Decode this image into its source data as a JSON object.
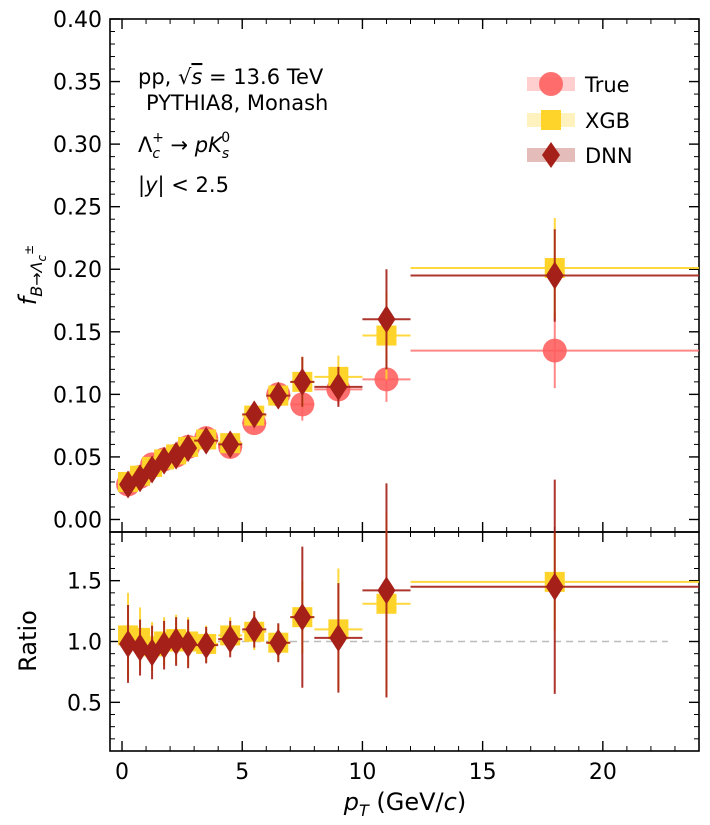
{
  "chart_data": {
    "type": "scatter",
    "xlabel": "p_T (GeV/c)",
    "xlim": [
      -0.5,
      24
    ],
    "xticks": [
      0,
      5,
      10,
      15,
      20
    ],
    "grid": false,
    "legend_position": "top-right",
    "annotations": [
      "pp, √s = 13.6 TeV",
      "PYTHIA8, Monash",
      "Λc+ → pKs0",
      "|y| < 2.5"
    ],
    "panels": [
      {
        "name": "main",
        "ylabel": "f_{B→Λc±}",
        "ylim": [
          -0.01,
          0.4
        ],
        "yticks": [
          0.0,
          0.05,
          0.1,
          0.15,
          0.2,
          0.25,
          0.3,
          0.35,
          0.4
        ],
        "ytick_labels": [
          "0.00",
          "0.05",
          "0.10",
          "0.15",
          "0.20",
          "0.25",
          "0.30",
          "0.35",
          "0.40"
        ],
        "series": [
          {
            "name": "True",
            "marker": "circle",
            "color": "#ff6060",
            "points": [
              {
                "x": 0.25,
                "xerr": 0.25,
                "y": 0.028,
                "yerr": 0.003
              },
              {
                "x": 0.75,
                "xerr": 0.25,
                "y": 0.034,
                "yerr": 0.003
              },
              {
                "x": 1.25,
                "xerr": 0.25,
                "y": 0.044,
                "yerr": 0.003
              },
              {
                "x": 1.75,
                "xerr": 0.25,
                "y": 0.048,
                "yerr": 0.003
              },
              {
                "x": 2.25,
                "xerr": 0.25,
                "y": 0.051,
                "yerr": 0.003
              },
              {
                "x": 2.75,
                "xerr": 0.25,
                "y": 0.058,
                "yerr": 0.003
              },
              {
                "x": 3.5,
                "xerr": 0.5,
                "y": 0.065,
                "yerr": 0.004
              },
              {
                "x": 4.5,
                "xerr": 0.5,
                "y": 0.058,
                "yerr": 0.005
              },
              {
                "x": 5.5,
                "xerr": 0.5,
                "y": 0.077,
                "yerr": 0.006
              },
              {
                "x": 6.5,
                "xerr": 0.5,
                "y": 0.1,
                "yerr": 0.008
              },
              {
                "x": 7.5,
                "xerr": 0.5,
                "y": 0.092,
                "yerr": 0.013
              },
              {
                "x": 9.0,
                "xerr": 1.0,
                "y": 0.104,
                "yerr": 0.012
              },
              {
                "x": 11.0,
                "xerr": 1.0,
                "y": 0.112,
                "yerr": 0.018
              },
              {
                "x": 18.0,
                "xerr": 6.0,
                "y": 0.135,
                "yerr": 0.03
              }
            ]
          },
          {
            "name": "XGB",
            "marker": "square",
            "color": "#ffd42a",
            "points": [
              {
                "x": 0.25,
                "xerr": 0.25,
                "y": 0.03,
                "yerr": 0.004
              },
              {
                "x": 0.75,
                "xerr": 0.25,
                "y": 0.035,
                "yerr": 0.004
              },
              {
                "x": 1.25,
                "xerr": 0.25,
                "y": 0.042,
                "yerr": 0.004
              },
              {
                "x": 1.75,
                "xerr": 0.25,
                "y": 0.048,
                "yerr": 0.004
              },
              {
                "x": 2.25,
                "xerr": 0.25,
                "y": 0.052,
                "yerr": 0.004
              },
              {
                "x": 2.75,
                "xerr": 0.25,
                "y": 0.058,
                "yerr": 0.004
              },
              {
                "x": 3.5,
                "xerr": 0.5,
                "y": 0.064,
                "yerr": 0.005
              },
              {
                "x": 4.5,
                "xerr": 0.5,
                "y": 0.061,
                "yerr": 0.006
              },
              {
                "x": 5.5,
                "xerr": 0.5,
                "y": 0.083,
                "yerr": 0.007
              },
              {
                "x": 6.5,
                "xerr": 0.5,
                "y": 0.099,
                "yerr": 0.01
              },
              {
                "x": 7.5,
                "xerr": 0.5,
                "y": 0.11,
                "yerr": 0.02
              },
              {
                "x": 9.0,
                "xerr": 1.0,
                "y": 0.114,
                "yerr": 0.017
              },
              {
                "x": 11.0,
                "xerr": 1.0,
                "y": 0.147,
                "yerr": 0.035
              },
              {
                "x": 18.0,
                "xerr": 6.0,
                "y": 0.201,
                "yerr": 0.04
              }
            ]
          },
          {
            "name": "DNN",
            "marker": "diamond",
            "color": "#a52018",
            "points": [
              {
                "x": 0.25,
                "xerr": 0.25,
                "y": 0.028,
                "yerr": 0.004
              },
              {
                "x": 0.75,
                "xerr": 0.25,
                "y": 0.033,
                "yerr": 0.004
              },
              {
                "x": 1.25,
                "xerr": 0.25,
                "y": 0.04,
                "yerr": 0.004
              },
              {
                "x": 1.75,
                "xerr": 0.25,
                "y": 0.047,
                "yerr": 0.004
              },
              {
                "x": 2.25,
                "xerr": 0.25,
                "y": 0.051,
                "yerr": 0.004
              },
              {
                "x": 2.75,
                "xerr": 0.25,
                "y": 0.057,
                "yerr": 0.004
              },
              {
                "x": 3.5,
                "xerr": 0.5,
                "y": 0.063,
                "yerr": 0.005
              },
              {
                "x": 4.5,
                "xerr": 0.5,
                "y": 0.06,
                "yerr": 0.006
              },
              {
                "x": 5.5,
                "xerr": 0.5,
                "y": 0.084,
                "yerr": 0.008
              },
              {
                "x": 6.5,
                "xerr": 0.5,
                "y": 0.099,
                "yerr": 0.01
              },
              {
                "x": 7.5,
                "xerr": 0.5,
                "y": 0.11,
                "yerr": 0.02
              },
              {
                "x": 9.0,
                "xerr": 1.0,
                "y": 0.106,
                "yerr": 0.016
              },
              {
                "x": 11.0,
                "xerr": 1.0,
                "y": 0.16,
                "yerr": 0.04
              },
              {
                "x": 18.0,
                "xerr": 6.0,
                "y": 0.195,
                "yerr": 0.037
              }
            ]
          }
        ]
      },
      {
        "name": "ratio",
        "ylabel": "Ratio",
        "ylim": [
          0.1,
          1.9
        ],
        "yticks": [
          0.5,
          1.0,
          1.5
        ],
        "ytick_labels": [
          "0.5",
          "1.0",
          "1.5"
        ],
        "reference_line": {
          "y": 1.0,
          "x_range": [
            0,
            22.7
          ],
          "style": "dashed",
          "color": "#bbbbbb"
        },
        "series": [
          {
            "name": "XGB",
            "marker": "square",
            "color": "#ffd42a",
            "points": [
              {
                "x": 0.25,
                "xerr": 0.25,
                "y": 1.05,
                "yerr": 0.35
              },
              {
                "x": 0.75,
                "xerr": 0.25,
                "y": 1.03,
                "yerr": 0.25
              },
              {
                "x": 1.25,
                "xerr": 0.25,
                "y": 0.96,
                "yerr": 0.2
              },
              {
                "x": 1.75,
                "xerr": 0.25,
                "y": 1.0,
                "yerr": 0.2
              },
              {
                "x": 2.25,
                "xerr": 0.25,
                "y": 1.02,
                "yerr": 0.2
              },
              {
                "x": 2.75,
                "xerr": 0.25,
                "y": 1.0,
                "yerr": 0.2
              },
              {
                "x": 3.5,
                "xerr": 0.5,
                "y": 0.98,
                "yerr": 0.15
              },
              {
                "x": 4.5,
                "xerr": 0.5,
                "y": 1.05,
                "yerr": 0.15
              },
              {
                "x": 5.5,
                "xerr": 0.5,
                "y": 1.08,
                "yerr": 0.15
              },
              {
                "x": 6.5,
                "xerr": 0.5,
                "y": 0.99,
                "yerr": 0.15
              },
              {
                "x": 7.5,
                "xerr": 0.5,
                "y": 1.2,
                "yerr": 0.3
              },
              {
                "x": 9.0,
                "xerr": 1.0,
                "y": 1.1,
                "yerr": 0.5
              },
              {
                "x": 11.0,
                "xerr": 1.0,
                "y": 1.31,
                "yerr": 0.75
              },
              {
                "x": 18.0,
                "xerr": 6.0,
                "y": 1.49,
                "yerr": 0.4
              }
            ]
          },
          {
            "name": "DNN",
            "marker": "diamond",
            "color": "#a52018",
            "points": [
              {
                "x": 0.25,
                "xerr": 0.25,
                "y": 0.98,
                "yerr": 0.32
              },
              {
                "x": 0.75,
                "xerr": 0.25,
                "y": 0.95,
                "yerr": 0.23
              },
              {
                "x": 1.25,
                "xerr": 0.25,
                "y": 0.91,
                "yerr": 0.22
              },
              {
                "x": 1.75,
                "xerr": 0.25,
                "y": 0.97,
                "yerr": 0.2
              },
              {
                "x": 2.25,
                "xerr": 0.25,
                "y": 1.0,
                "yerr": 0.2
              },
              {
                "x": 2.75,
                "xerr": 0.25,
                "y": 0.98,
                "yerr": 0.2
              },
              {
                "x": 3.5,
                "xerr": 0.5,
                "y": 0.97,
                "yerr": 0.15
              },
              {
                "x": 4.5,
                "xerr": 0.5,
                "y": 1.02,
                "yerr": 0.15
              },
              {
                "x": 5.5,
                "xerr": 0.5,
                "y": 1.1,
                "yerr": 0.15
              },
              {
                "x": 6.5,
                "xerr": 0.5,
                "y": 0.99,
                "yerr": 0.16
              },
              {
                "x": 7.5,
                "xerr": 0.5,
                "y": 1.2,
                "yerr": 0.58
              },
              {
                "x": 9.0,
                "xerr": 1.0,
                "y": 1.03,
                "yerr": 0.45
              },
              {
                "x": 11.0,
                "xerr": 1.0,
                "y": 1.42,
                "yerr": 0.88
              },
              {
                "x": 18.0,
                "xerr": 6.0,
                "y": 1.45,
                "yerr": 0.88
              }
            ]
          }
        ]
      }
    ]
  },
  "labels": {
    "x_axis": {
      "main": "p",
      "sub": "T",
      "rest": " (GeV/",
      "c": "c",
      "close": ")"
    },
    "y_axis_main": {
      "f": "f",
      "sub": "B→Λ",
      "subsub": "c",
      "sup": "±"
    },
    "y_axis_ratio": "Ratio",
    "anno_pp": "pp, ",
    "anno_sqrt": "√",
    "anno_s": "s",
    "anno_energy": " = 13.6 TeV",
    "anno_pythia": "PYTHIA8, Monash",
    "anno_decay_lambda": "Λ",
    "anno_decay_c": "c",
    "anno_decay_plus": "+",
    "anno_decay_arrow": " → ",
    "anno_decay_p": "p",
    "anno_decay_K": "K",
    "anno_decay_s": "s",
    "anno_decay_0": "0",
    "anno_rapidity_bar": "|",
    "anno_rapidity_y": "y",
    "anno_rapidity_rest": "| < 2.5",
    "legend": [
      "True",
      "XGB",
      "DNN"
    ]
  }
}
